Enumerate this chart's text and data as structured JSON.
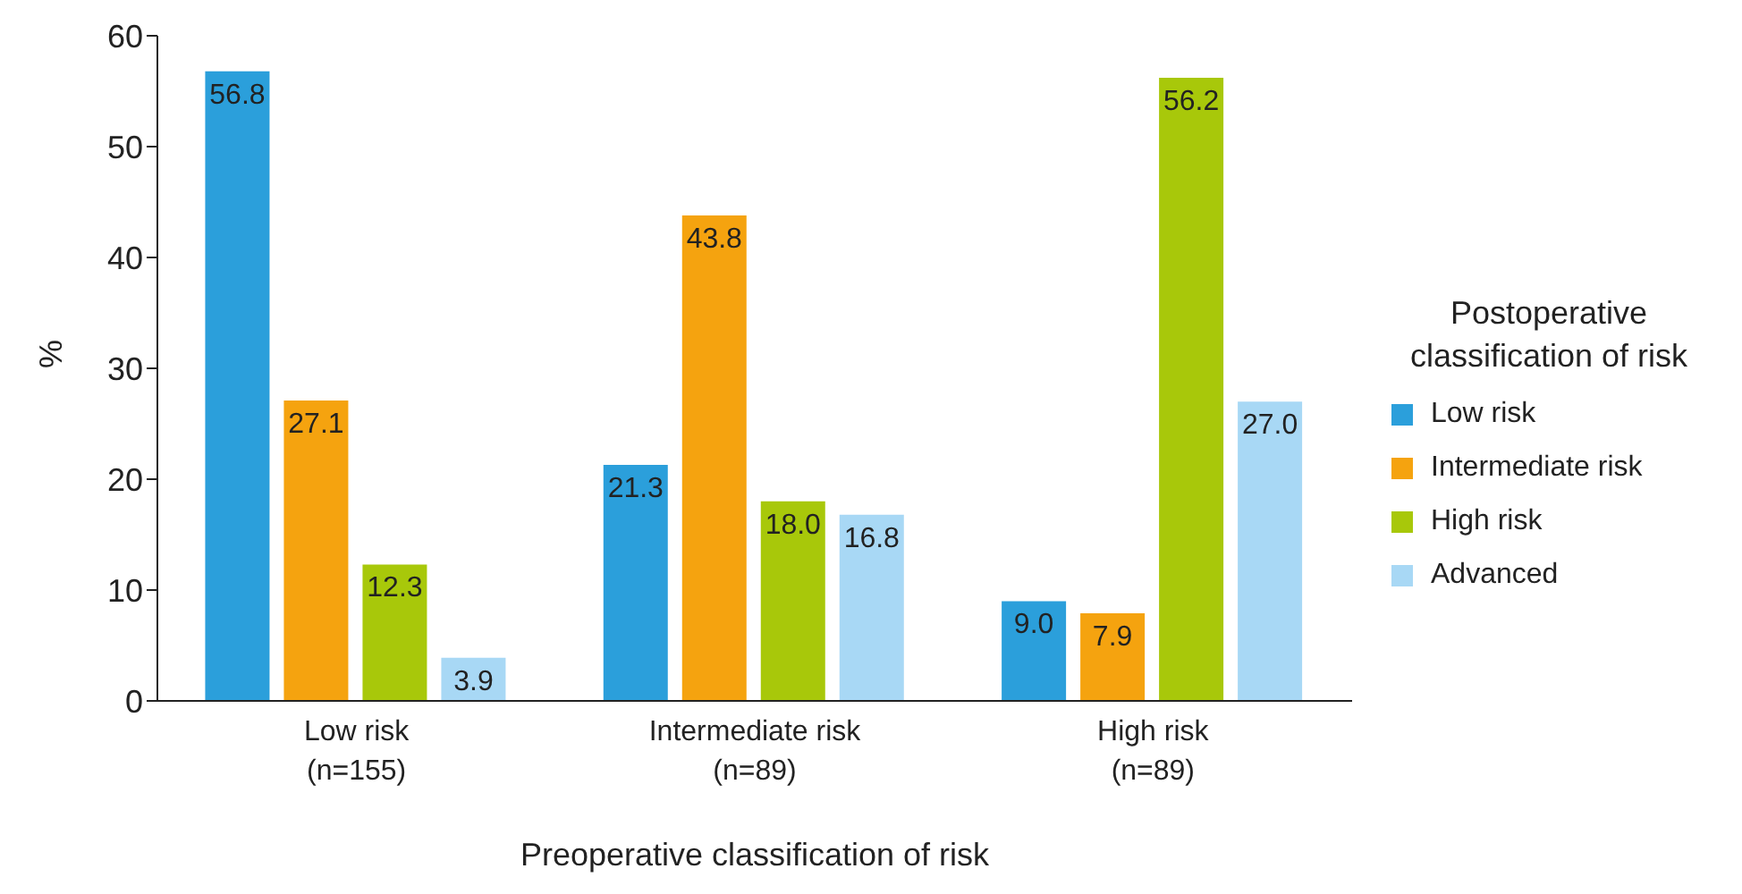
{
  "chart_data": {
    "type": "bar",
    "xlabel": "Preoperative classification of risk",
    "ylabel": "%",
    "legend_title": "Postoperative\nclassification of risk",
    "categories": [
      "Low risk\n(n=155)",
      "Intermediate risk\n(n=89)",
      "High risk\n(n=89)"
    ],
    "series": [
      {
        "name": "Low risk",
        "color": "#2b9fdb",
        "values": [
          56.8,
          21.3,
          9.0
        ]
      },
      {
        "name": "Intermediate risk",
        "color": "#f5a30f",
        "values": [
          27.1,
          43.8,
          7.9
        ]
      },
      {
        "name": "High risk",
        "color": "#a8c80a",
        "values": [
          12.3,
          18.0,
          56.2
        ]
      },
      {
        "name": "Advanced",
        "color": "#a8d8f5",
        "values": [
          3.9,
          16.8,
          27.0
        ]
      }
    ],
    "value_labels": [
      [
        "56.8",
        "21.3",
        "9.0"
      ],
      [
        "27.1",
        "43.8",
        "7.9"
      ],
      [
        "12.3",
        "18.0",
        "56.2"
      ],
      [
        "3.9",
        "16.8",
        "27.0"
      ]
    ],
    "ylim": [
      0,
      60
    ],
    "yticks": [
      0,
      10,
      20,
      30,
      40,
      50,
      60
    ],
    "grid": false,
    "legend": "right"
  }
}
